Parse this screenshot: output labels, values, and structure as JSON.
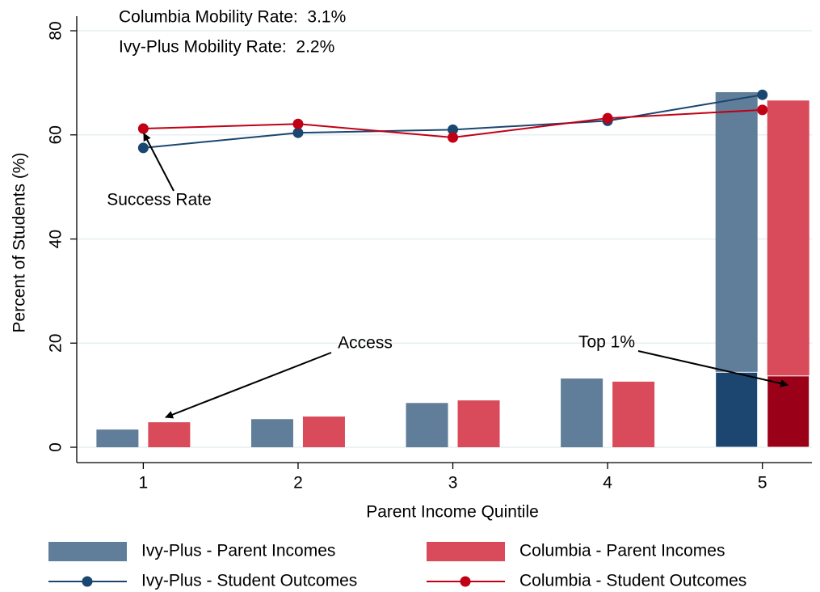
{
  "chart_data": {
    "type": "bar",
    "annotations": [
      "Columbia Mobility Rate:  3.1%",
      "Ivy-Plus Mobility Rate:  2.2%",
      "Success Rate",
      "Access",
      "Top 1%"
    ],
    "xlabel": "Parent Income Quintile",
    "ylabel": "Percent of Students (%)",
    "x": [
      1,
      2,
      3,
      4,
      5
    ],
    "xlim": [
      0.57,
      5.32
    ],
    "xticks": [
      1,
      2,
      3,
      4,
      5
    ],
    "ylim": [
      -2.95,
      82.8
    ],
    "yticks": [
      0,
      20,
      40,
      60,
      80
    ],
    "grid": true,
    "series": [
      {
        "name": "Ivy-Plus - Parent Incomes",
        "type": "bar",
        "color": "#607d99",
        "values": [
          3.4,
          5.4,
          8.5,
          13.2,
          68.2
        ],
        "inner_values": [
          null,
          null,
          null,
          null,
          14.4
        ],
        "inner_color": "#1c4670"
      },
      {
        "name": "Columbia - Parent Incomes",
        "type": "bar",
        "color": "#d94b5b",
        "values": [
          4.8,
          5.9,
          9.0,
          12.6,
          66.6
        ],
        "inner_values": [
          null,
          null,
          null,
          null,
          13.7
        ],
        "inner_color": "#9a0018"
      },
      {
        "name": "Ivy-Plus - Student Outcomes",
        "type": "line",
        "color": "#1a476f",
        "values": [
          57.5,
          60.4,
          61.0,
          62.7,
          67.7
        ]
      },
      {
        "name": "Columbia - Student Outcomes",
        "type": "line",
        "color": "#c10016",
        "values": [
          61.2,
          62.1,
          59.5,
          63.2,
          64.8
        ]
      }
    ]
  }
}
